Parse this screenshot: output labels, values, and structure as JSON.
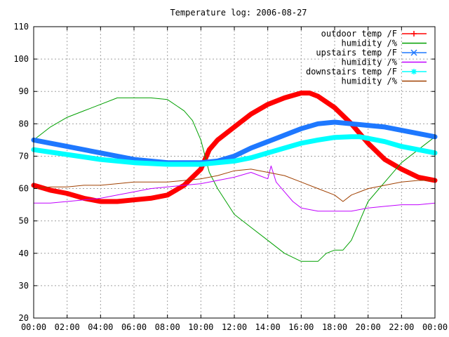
{
  "chart_data": {
    "type": "line",
    "title": "Temperature log: 2006-08-27",
    "xlabel": "",
    "ylabel": "",
    "xlim": [
      0,
      24
    ],
    "ylim": [
      20,
      110
    ],
    "x_ticks": [
      0,
      2,
      4,
      6,
      8,
      10,
      12,
      14,
      16,
      18,
      20,
      22,
      24
    ],
    "x_tick_labels": [
      "00:00",
      "02:00",
      "04:00",
      "06:00",
      "08:00",
      "10:00",
      "12:00",
      "14:00",
      "16:00",
      "18:00",
      "20:00",
      "22:00",
      "00:00"
    ],
    "y_ticks": [
      20,
      30,
      40,
      50,
      60,
      70,
      80,
      90,
      100,
      110
    ],
    "grid": true,
    "legend_position": "top-right",
    "series": [
      {
        "name": "outdoor temp /F",
        "color": "#ff0000",
        "style": "thick",
        "x": [
          0,
          1,
          2,
          3,
          4,
          5,
          6,
          7,
          8,
          9,
          10,
          10.5,
          11,
          12,
          13,
          14,
          15,
          16,
          16.5,
          17,
          18,
          19,
          20,
          21,
          22,
          23,
          24
        ],
        "y": [
          61,
          59.5,
          58.5,
          57,
          56,
          56,
          56.5,
          57,
          58,
          61,
          66,
          72,
          75,
          79,
          83,
          86,
          88,
          89.5,
          89.5,
          88.5,
          85,
          80,
          74,
          69,
          66,
          63.5,
          62.5
        ]
      },
      {
        "name": "humidity /%",
        "color": "#00a000",
        "style": "thin",
        "x": [
          0,
          1,
          2,
          3,
          4,
          5,
          6,
          7,
          8,
          9,
          9.5,
          10,
          10.5,
          11,
          12,
          13,
          14,
          15,
          16,
          17,
          17.5,
          18,
          18.5,
          19,
          20,
          21,
          22,
          23,
          24
        ],
        "y": [
          75,
          79,
          82,
          84,
          86,
          88,
          88,
          88,
          87.5,
          84,
          81,
          75,
          65,
          60,
          52,
          48,
          44,
          40,
          37.5,
          37.5,
          40,
          41,
          41,
          44,
          56,
          62,
          68,
          72,
          76
        ]
      },
      {
        "name": "upstairs temp /F",
        "color": "#1e78ff",
        "style": "thick",
        "x": [
          0,
          2,
          4,
          6,
          8,
          10,
          11,
          12,
          13,
          14,
          15,
          16,
          17,
          18,
          19,
          20,
          21,
          22,
          23,
          24
        ],
        "y": [
          75,
          73,
          71,
          69,
          68,
          68,
          68.5,
          70,
          72.5,
          74.5,
          76.5,
          78.5,
          80,
          80.5,
          80,
          79.5,
          79,
          78,
          77,
          76
        ]
      },
      {
        "name": "humidity /%",
        "color": "#c000ff",
        "style": "thin",
        "x": [
          0,
          1,
          2,
          3,
          4,
          5,
          6,
          7,
          8,
          9,
          10,
          11,
          12,
          13,
          13.5,
          14,
          14.2,
          14.5,
          15,
          15.5,
          16,
          17,
          18,
          19,
          20,
          21,
          22,
          23,
          24
        ],
        "y": [
          55.5,
          55.5,
          56,
          56.5,
          57,
          58,
          59,
          60,
          60.5,
          61,
          61.5,
          62.5,
          63.5,
          65,
          64,
          63,
          67,
          62,
          59,
          56,
          54,
          53,
          53,
          53,
          54,
          54.5,
          55,
          55,
          55.5
        ]
      },
      {
        "name": "downstairs temp /F",
        "color": "#00ffff",
        "style": "thick",
        "x": [
          0,
          2,
          4,
          6,
          8,
          10,
          12,
          13,
          14,
          15,
          16,
          17,
          18,
          19,
          19.5,
          20,
          21,
          22,
          23,
          24
        ],
        "y": [
          72,
          70.5,
          69,
          68,
          67.5,
          67.5,
          68.5,
          69.5,
          71,
          72.5,
          74,
          75,
          75.8,
          76,
          76,
          75.5,
          74.5,
          73,
          72,
          71
        ]
      },
      {
        "name": "humidity /%",
        "color": "#a04000",
        "style": "thin",
        "x": [
          0,
          1,
          2,
          3,
          4,
          5,
          6,
          7,
          8,
          9,
          10,
          11,
          12,
          13,
          14,
          15,
          16,
          17,
          18,
          18.5,
          19,
          20,
          21,
          22,
          23,
          24
        ],
        "y": [
          60,
          60.5,
          60.5,
          61,
          61,
          61.5,
          62,
          62,
          62,
          62.5,
          63,
          64,
          65.5,
          66,
          65,
          64,
          62,
          60,
          58,
          56,
          58,
          60,
          61,
          62,
          62.5,
          62.5
        ]
      }
    ]
  }
}
